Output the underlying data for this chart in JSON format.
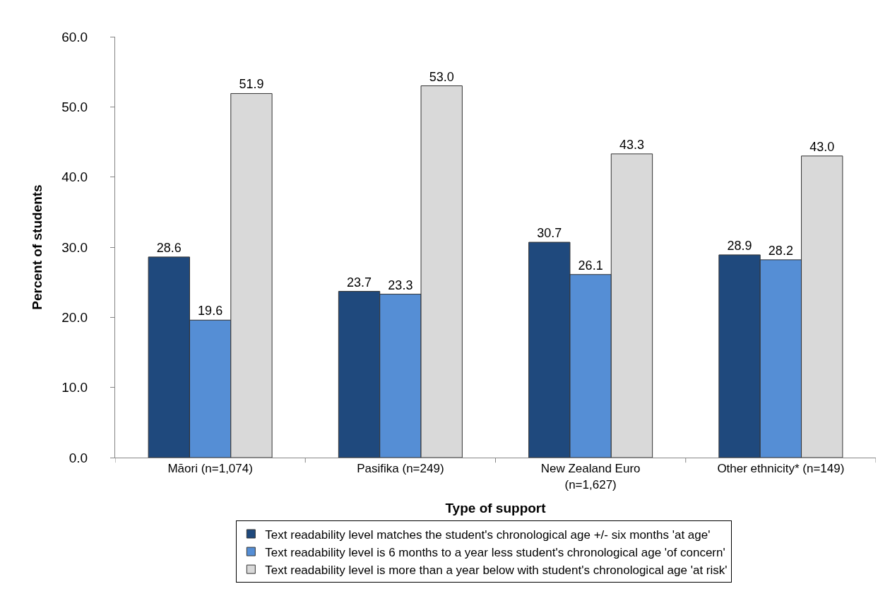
{
  "chart_data": {
    "type": "bar",
    "xlabel": "Type of support",
    "ylabel": "Percent of students",
    "categories": [
      "Māori (n=1,074)",
      "Pasifika (n=249)",
      "New Zealand Euro (n=1,627)",
      "Other ethnicity* (n=149)"
    ],
    "series": [
      {
        "name": "Text readability level matches the student's chronological age +/- six months 'at age'",
        "color": "#1f497d",
        "values": [
          28.6,
          23.7,
          30.7,
          28.9
        ],
        "value_labels": [
          "28.6",
          "23.7",
          "30.7",
          "28.9"
        ]
      },
      {
        "name": "Text readability level is 6 months to a year less student's chronological age 'of concern'",
        "color": "#558ed5",
        "values": [
          19.6,
          23.3,
          26.1,
          28.2
        ],
        "value_labels": [
          "19.6",
          "23.3",
          "26.1",
          "28.2"
        ]
      },
      {
        "name": "Text readability level is more than a year below with student's chronological age 'at risk'",
        "color": "#d9d9d9",
        "values": [
          51.9,
          53.0,
          43.3,
          43.0
        ],
        "value_labels": [
          "51.9",
          "53.0",
          "43.3",
          "43.0"
        ]
      }
    ],
    "ylim": [
      0,
      60
    ],
    "yticks": [
      {
        "value": 0,
        "label": "0.0"
      },
      {
        "value": 10,
        "label": "10.0"
      },
      {
        "value": 20,
        "label": "20.0"
      },
      {
        "value": 30,
        "label": "30.0"
      },
      {
        "value": 40,
        "label": "40.0"
      },
      {
        "value": 50,
        "label": "50.0"
      },
      {
        "value": 60,
        "label": "60.0"
      }
    ],
    "grid": false,
    "legend": "bottom"
  }
}
